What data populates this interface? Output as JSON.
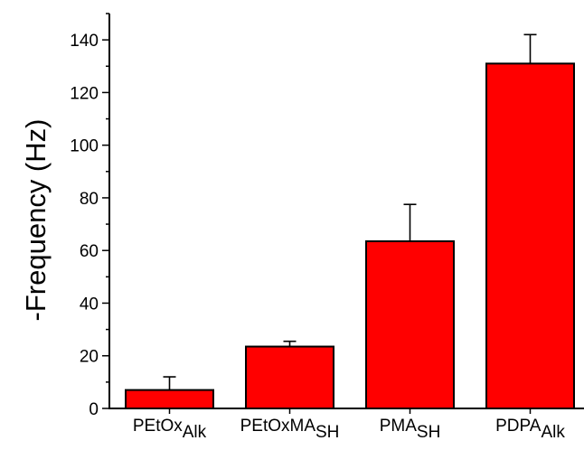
{
  "chart_data": {
    "type": "bar",
    "title": "",
    "xlabel": "",
    "ylabel": "-Frequency (Hz)",
    "ylim": [
      0,
      150
    ],
    "yticks": [
      0,
      20,
      40,
      60,
      80,
      100,
      120,
      140
    ],
    "y_minor_step": 10,
    "grid": false,
    "legend": "none",
    "categories": [
      {
        "main": "PEtOx",
        "sub": "Alk"
      },
      {
        "main": "PEtOxMA",
        "sub": "SH"
      },
      {
        "main": "PMA",
        "sub": "SH"
      },
      {
        "main": "PDPA",
        "sub": "Alk"
      }
    ],
    "values": [
      7,
      23.5,
      63.5,
      131
    ],
    "errors": [
      5,
      2,
      14,
      11
    ],
    "bar_color": "#ff0000",
    "edge_color": "#000000"
  }
}
